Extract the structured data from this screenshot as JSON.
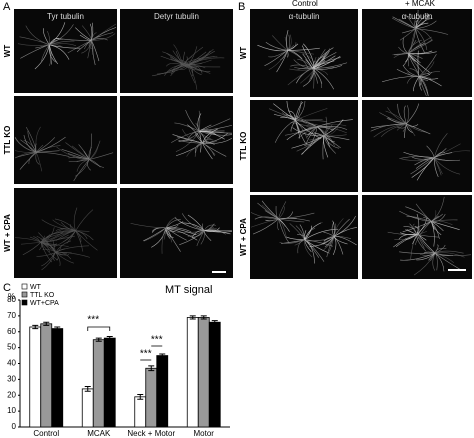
{
  "panels": {
    "a": {
      "label": "A",
      "columns": [
        "Tyr tubulin",
        "Detyr tubulin"
      ],
      "rows": [
        "WT",
        "TTL KO",
        "WT + CPA"
      ]
    },
    "b": {
      "label": "B",
      "columns": [
        "Control",
        "+ MCAK"
      ],
      "image_label": "α-tubulin",
      "rows": [
        "WT",
        "TTL KO",
        "WT + CPA"
      ]
    },
    "c": {
      "label": "C"
    }
  },
  "chart_data": {
    "type": "bar",
    "title": "MT signal",
    "y_label": "%",
    "categories": [
      "Control",
      "MCAK",
      "Neck + Motor",
      "Motor"
    ],
    "series": [
      {
        "name": "WT",
        "color": "#ffffff",
        "values": [
          63,
          24,
          19,
          69
        ],
        "errors": [
          1,
          1.5,
          1.5,
          1
        ]
      },
      {
        "name": "TTL KO",
        "color": "#999999",
        "values": [
          65,
          55,
          37,
          69
        ],
        "errors": [
          1,
          1,
          1.5,
          1
        ]
      },
      {
        "name": "WT+CPA",
        "color": "#000000",
        "values": [
          62,
          56,
          45,
          66
        ],
        "errors": [
          1,
          1,
          1,
          1
        ]
      }
    ],
    "ylim": [
      0,
      80
    ],
    "yticks": [
      0,
      10,
      20,
      30,
      40,
      50,
      60,
      70,
      80
    ],
    "annotations": [
      "***",
      "***",
      "***"
    ]
  }
}
